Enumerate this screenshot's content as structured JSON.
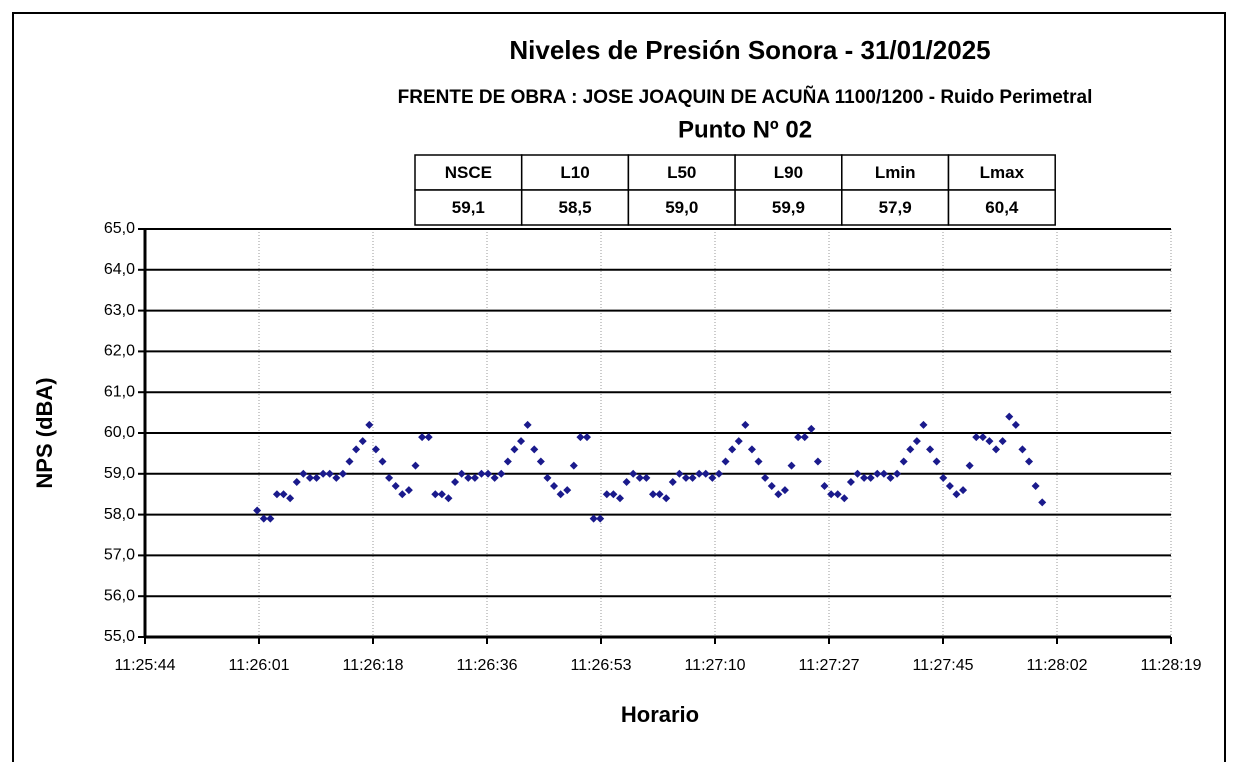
{
  "chart_data": {
    "type": "scatter",
    "title": "Niveles de Presión Sonora - 31/01/2025",
    "subtitle": "FRENTE DE OBRA : JOSE JOAQUIN DE ACUÑA 1100/1200 - Ruido Perimetral",
    "point_label": "Punto Nº 02",
    "xlabel": "Horario",
    "ylabel": "NPS (dBA)",
    "color": "#1a1a8c",
    "grid": true,
    "x": [
      41161,
      41162,
      41163,
      41164,
      41165,
      41166,
      41167,
      41168,
      41169,
      41170,
      41171,
      41172,
      41173,
      41174,
      41175,
      41176,
      41177,
      41178,
      41179,
      41180,
      41181,
      41182,
      41183,
      41184,
      41185,
      41186,
      41187,
      41188,
      41189,
      41190,
      41191,
      41192,
      41193,
      41194,
      41195,
      41196,
      41197,
      41198,
      41199,
      41200,
      41201,
      41202,
      41203,
      41204,
      41205,
      41206,
      41207,
      41208,
      41209,
      41210,
      41211,
      41212,
      41213,
      41214,
      41215,
      41216,
      41217,
      41218,
      41219,
      41220,
      41221,
      41222,
      41223,
      41224,
      41225,
      41226,
      41227,
      41228,
      41229,
      41230,
      41231,
      41232,
      41233,
      41234,
      41235,
      41236,
      41237,
      41238,
      41239,
      41240,
      41241,
      41242,
      41243,
      41244,
      41245,
      41246,
      41247,
      41248,
      41249,
      41250,
      41251,
      41252,
      41253,
      41254,
      41255,
      41256,
      41257,
      41258,
      41259,
      41260,
      41261,
      41262,
      41263,
      41264,
      41265,
      41266,
      41267,
      41268,
      41269,
      41270,
      41271,
      41272,
      41273,
      41274,
      41275,
      41276,
      41277,
      41278,
      41279,
      41280
    ],
    "values": [
      58.1,
      57.9,
      57.9,
      58.5,
      58.5,
      58.4,
      58.8,
      59.0,
      58.9,
      58.9,
      59.0,
      59.0,
      58.9,
      59.0,
      59.3,
      59.6,
      59.8,
      60.2,
      59.6,
      59.3,
      58.9,
      58.7,
      58.5,
      58.6,
      59.2,
      59.9,
      59.9,
      58.5,
      58.5,
      58.4,
      58.8,
      59.0,
      58.9,
      58.9,
      59.0,
      59.0,
      58.9,
      59.0,
      59.3,
      59.6,
      59.8,
      60.2,
      59.6,
      59.3,
      58.9,
      58.7,
      58.5,
      58.6,
      59.2,
      59.9,
      59.9,
      57.9,
      57.9,
      58.5,
      58.5,
      58.4,
      58.8,
      59.0,
      58.9,
      58.9,
      58.5,
      58.5,
      58.4,
      58.8,
      59.0,
      58.9,
      58.9,
      59.0,
      59.0,
      58.9,
      59.0,
      59.3,
      59.6,
      59.8,
      60.2,
      59.6,
      59.3,
      58.9,
      58.7,
      58.5,
      58.6,
      59.2,
      59.9,
      59.9,
      60.1,
      59.3,
      58.7,
      58.5,
      58.5,
      58.4,
      58.8,
      59.0,
      58.9,
      58.9,
      59.0,
      59.0,
      58.9,
      59.0,
      59.3,
      59.6,
      59.8,
      60.2,
      59.6,
      59.3,
      58.9,
      58.7,
      58.5,
      58.6,
      59.2,
      59.9,
      59.9,
      59.8,
      59.6,
      59.8,
      60.4,
      60.2,
      59.6,
      59.3,
      58.7,
      58.3
    ],
    "xlim": [
      41144,
      41299.52
    ],
    "xticks": [
      {
        "value": 41144,
        "label": "11:25:44"
      },
      {
        "value": 41161.28,
        "label": "11:26:01"
      },
      {
        "value": 41178.56,
        "label": "11:26:18"
      },
      {
        "value": 41195.84,
        "label": "11:26:36"
      },
      {
        "value": 41213.12,
        "label": "11:26:53"
      },
      {
        "value": 41230.4,
        "label": "11:27:10"
      },
      {
        "value": 41247.68,
        "label": "11:27:27"
      },
      {
        "value": 41264.96,
        "label": "11:27:45"
      },
      {
        "value": 41282.24,
        "label": "11:28:02"
      },
      {
        "value": 41299.52,
        "label": "11:28:19"
      }
    ],
    "ylim": [
      55,
      65
    ],
    "yticks": [
      {
        "value": 55,
        "label": "55,0"
      },
      {
        "value": 56,
        "label": "56,0"
      },
      {
        "value": 57,
        "label": "57,0"
      },
      {
        "value": 58,
        "label": "58,0"
      },
      {
        "value": 59,
        "label": "59,0"
      },
      {
        "value": 60,
        "label": "60,0"
      },
      {
        "value": 61,
        "label": "61,0"
      },
      {
        "value": 62,
        "label": "62,0"
      },
      {
        "value": 63,
        "label": "63,0"
      },
      {
        "value": 64,
        "label": "64,0"
      },
      {
        "value": 65,
        "label": "65,0"
      }
    ],
    "stats_table": {
      "headers": [
        "NSCE",
        "L10",
        "L50",
        "L90",
        "Lmin",
        "Lmax"
      ],
      "values": [
        "59,1",
        "58,5",
        "59,0",
        "59,9",
        "57,9",
        "60,4"
      ]
    }
  }
}
